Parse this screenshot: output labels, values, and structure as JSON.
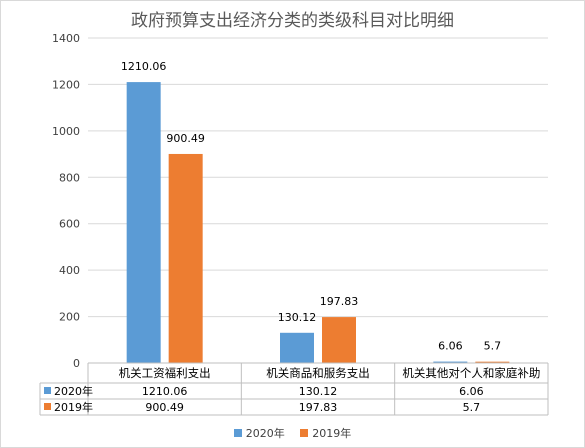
{
  "chart_data": {
    "type": "bar",
    "title": "政府预算支出经济分类的类级科目对比明细",
    "categories": [
      "机关工资福利支出",
      "机关商品和服务支出",
      "机关其他对个人和家庭补助"
    ],
    "series": [
      {
        "name": "2020年",
        "values": [
          1210.06,
          130.12,
          6.06
        ],
        "labels": [
          "1210.06",
          "130.12",
          "6.06"
        ],
        "color": "#5b9bd5"
      },
      {
        "name": "2019年",
        "values": [
          900.49,
          197.83,
          5.7
        ],
        "labels": [
          "900.49",
          "197.83",
          "5.7"
        ],
        "color": "#ed7d31"
      }
    ],
    "ylim": [
      0,
      1400
    ],
    "yticks": [
      0,
      200,
      400,
      600,
      800,
      1000,
      1200,
      1400
    ],
    "grid": true,
    "legend": "bottom",
    "data_table": true
  }
}
